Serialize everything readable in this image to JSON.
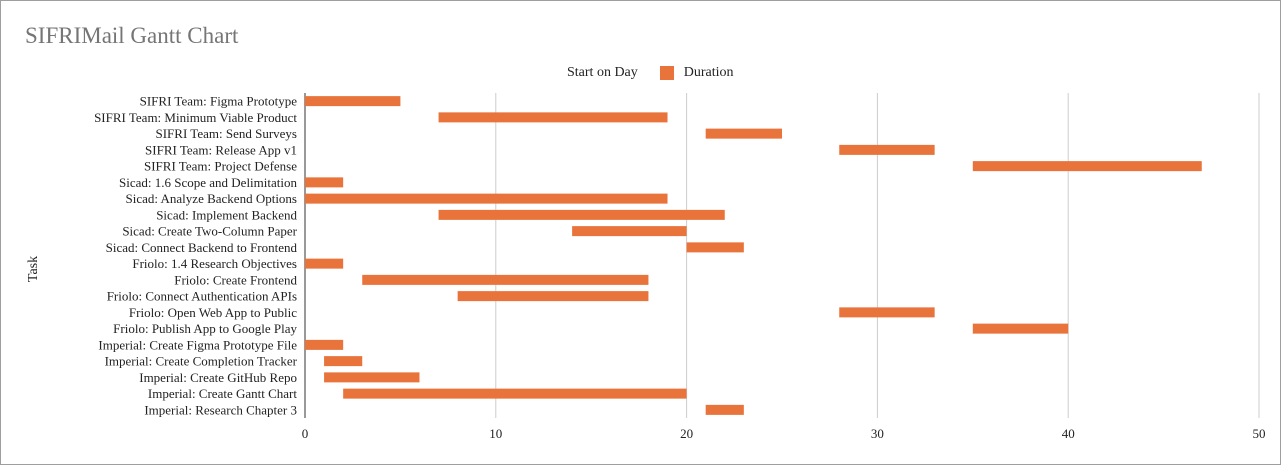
{
  "chart_data": {
    "type": "bar",
    "orientation": "horizontal-stacked-gantt",
    "title": "SIFRIMail Gantt Chart",
    "ylabel": "Task",
    "xlabel": "",
    "xlim": [
      0,
      50
    ],
    "xticks": [
      0,
      10,
      20,
      30,
      40,
      50
    ],
    "grid": true,
    "legend_position": "top",
    "legend": [
      {
        "name": "Start on Day",
        "color": "transparent"
      },
      {
        "name": "Duration",
        "color": "#e8743b"
      }
    ],
    "categories": [
      "SIFRI Team: Figma Prototype",
      "SIFRI Team: Minimum Viable Product",
      "SIFRI Team: Send Surveys",
      "SIFRI Team: Release App v1",
      "SIFRI Team: Project Defense",
      "Sicad: 1.6 Scope and Delimitation",
      "Sicad: Analyze Backend Options",
      "Sicad: Implement Backend",
      "Sicad: Create Two-Column Paper",
      "Sicad: Connect Backend to Frontend",
      "Friolo: 1.4 Research Objectives",
      "Friolo: Create Frontend",
      "Friolo: Connect Authentication APIs",
      "Friolo: Open Web App to Public",
      "Friolo: Publish App to Google Play",
      "Imperial: Create Figma Prototype File",
      "Imperial: Create Completion Tracker",
      "Imperial: Create GitHub Repo",
      "Imperial: Create Gantt Chart",
      "Imperial: Research Chapter 3"
    ],
    "series": [
      {
        "name": "Start on Day",
        "values": [
          0,
          7,
          21,
          28,
          35,
          0,
          0,
          7,
          14,
          20,
          0,
          3,
          8,
          28,
          35,
          0,
          1,
          1,
          2,
          21
        ]
      },
      {
        "name": "Duration",
        "values": [
          5,
          12,
          4,
          5,
          12,
          2,
          19,
          15,
          6,
          3,
          2,
          15,
          10,
          5,
          5,
          2,
          2,
          5,
          18,
          2
        ]
      }
    ]
  }
}
